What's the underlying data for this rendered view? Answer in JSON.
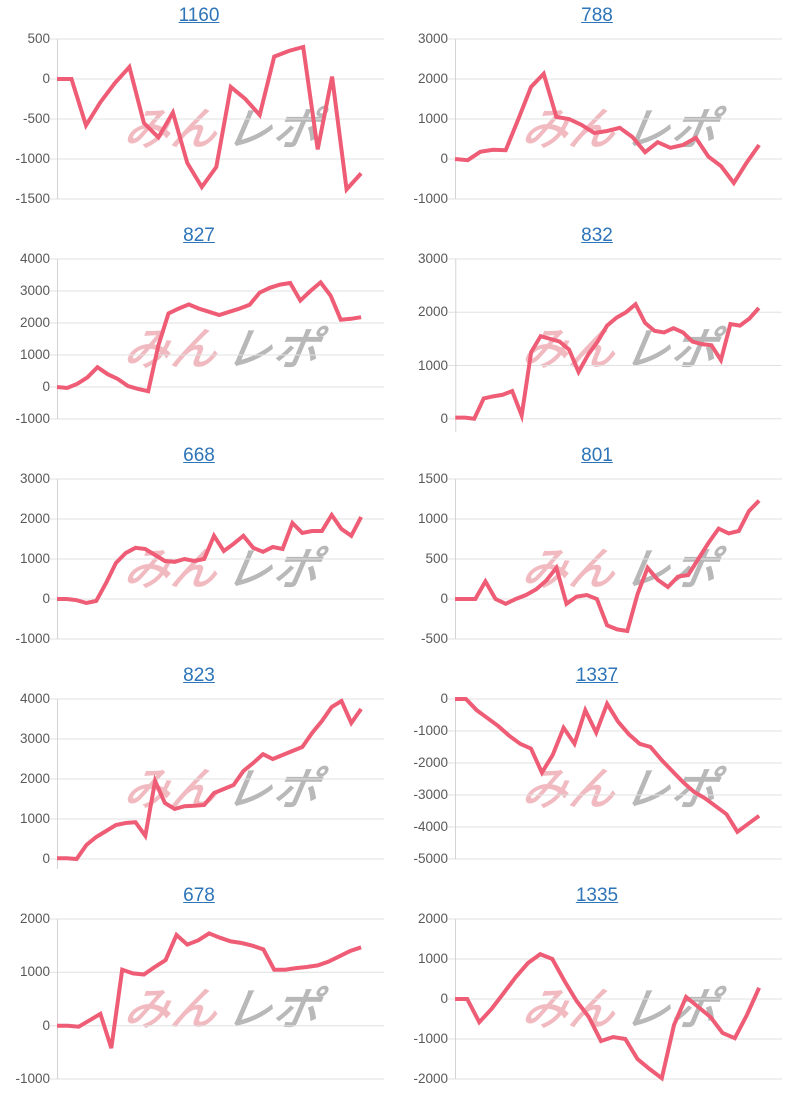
{
  "watermark": {
    "part1": "みん",
    "part2": "レポ"
  },
  "colors": {
    "line": "#ee5d75",
    "grid": "#e0e0e0",
    "axis": "#d4d4d4",
    "tick_label": "#595959",
    "title_link": "#2d74b8"
  },
  "chart_data": [
    {
      "type": "line",
      "title": "1160",
      "ylim": [
        -1500,
        500
      ],
      "yticks": [
        500,
        0,
        -500,
        -1000,
        -1500
      ],
      "values": [
        0,
        0,
        -580,
        -290,
        -50,
        150,
        -550,
        -730,
        -420,
        -1050,
        -1350,
        -1100,
        -100,
        -250,
        -450,
        280,
        350,
        400,
        -880,
        30,
        -1380,
        -1180
      ]
    },
    {
      "type": "line",
      "title": "788",
      "ylim": [
        -1000,
        3000
      ],
      "yticks": [
        3000,
        2000,
        1000,
        0,
        -1000
      ],
      "values": [
        0,
        -30,
        180,
        230,
        220,
        1000,
        1800,
        2130,
        1050,
        1000,
        850,
        650,
        700,
        780,
        550,
        170,
        420,
        280,
        350,
        530,
        60,
        -180,
        -600,
        -100,
        350
      ]
    },
    {
      "type": "line",
      "title": "827",
      "ylim": [
        -1000,
        4000
      ],
      "yticks": [
        4000,
        3000,
        2000,
        1000,
        0,
        -1000
      ],
      "values": [
        0,
        -30,
        100,
        300,
        620,
        400,
        250,
        30,
        -60,
        -130,
        1300,
        2300,
        2450,
        2580,
        2450,
        2350,
        2250,
        2350,
        2450,
        2570,
        2950,
        3100,
        3200,
        3250,
        2700,
        3000,
        3270,
        2850,
        2100,
        2130,
        2180
      ]
    },
    {
      "type": "line",
      "title": "832",
      "ylim": [
        -250,
        3000
      ],
      "yticks": [
        3000,
        2000,
        1000,
        0
      ],
      "values": [
        20,
        20,
        0,
        380,
        420,
        450,
        520,
        60,
        1250,
        1550,
        1500,
        1450,
        1300,
        880,
        1200,
        1450,
        1750,
        1900,
        2000,
        2150,
        1800,
        1650,
        1620,
        1700,
        1620,
        1450,
        1400,
        1380,
        1100,
        1780,
        1750,
        1880,
        2080
      ]
    },
    {
      "type": "line",
      "title": "668",
      "ylim": [
        -1000,
        3000
      ],
      "yticks": [
        3000,
        2000,
        1000,
        0,
        -1000
      ],
      "values": [
        0,
        0,
        -30,
        -100,
        -50,
        400,
        900,
        1150,
        1280,
        1250,
        1100,
        950,
        930,
        1000,
        950,
        1000,
        1580,
        1200,
        1380,
        1580,
        1280,
        1180,
        1300,
        1250,
        1900,
        1650,
        1700,
        1700,
        2100,
        1750,
        1580,
        2050
      ]
    },
    {
      "type": "line",
      "title": "801",
      "ylim": [
        -500,
        1500
      ],
      "yticks": [
        1500,
        1000,
        500,
        0,
        -500
      ],
      "values": [
        0,
        0,
        0,
        220,
        0,
        -60,
        0,
        50,
        120,
        230,
        390,
        -60,
        30,
        50,
        0,
        -330,
        -380,
        -400,
        60,
        390,
        240,
        150,
        280,
        300,
        500,
        700,
        880,
        820,
        850,
        1100,
        1230
      ]
    },
    {
      "type": "line",
      "title": "823",
      "ylim": [
        -250,
        4000
      ],
      "yticks": [
        4000,
        3000,
        2000,
        1000,
        0
      ],
      "values": [
        20,
        20,
        0,
        350,
        550,
        700,
        850,
        900,
        920,
        580,
        1950,
        1400,
        1250,
        1320,
        1330,
        1350,
        1650,
        1750,
        1850,
        2200,
        2400,
        2620,
        2500,
        2600,
        2700,
        2800,
        3150,
        3450,
        3800,
        3950,
        3400,
        3750
      ]
    },
    {
      "type": "line",
      "title": "1337",
      "ylim": [
        -5000,
        0
      ],
      "yticks": [
        0,
        -1000,
        -2000,
        -3000,
        -4000,
        -5000
      ],
      "values": [
        0,
        0,
        -350,
        -600,
        -850,
        -1150,
        -1400,
        -1550,
        -2300,
        -1750,
        -900,
        -1400,
        -350,
        -1050,
        -150,
        -700,
        -1100,
        -1400,
        -1500,
        -1900,
        -2250,
        -2600,
        -2900,
        -3100,
        -3350,
        -3600,
        -4150,
        -3900,
        -3650
      ]
    },
    {
      "type": "line",
      "title": "678",
      "ylim": [
        -1000,
        2000
      ],
      "yticks": [
        2000,
        1000,
        0,
        -1000
      ],
      "values": [
        0,
        0,
        -20,
        100,
        220,
        -420,
        1050,
        980,
        960,
        1100,
        1230,
        1700,
        1520,
        1600,
        1730,
        1650,
        1580,
        1550,
        1500,
        1430,
        1050,
        1050,
        1080,
        1100,
        1130,
        1200,
        1300,
        1400,
        1470
      ]
    },
    {
      "type": "line",
      "title": "1335",
      "ylim": [
        -2000,
        2000
      ],
      "yticks": [
        2000,
        1000,
        0,
        -1000,
        -2000
      ],
      "values": [
        0,
        0,
        -580,
        -250,
        150,
        550,
        900,
        1120,
        1000,
        450,
        -50,
        -450,
        -1050,
        -950,
        -1000,
        -1500,
        -1750,
        -1980,
        -650,
        50,
        -200,
        -450,
        -850,
        -980,
        -400,
        280
      ]
    }
  ]
}
